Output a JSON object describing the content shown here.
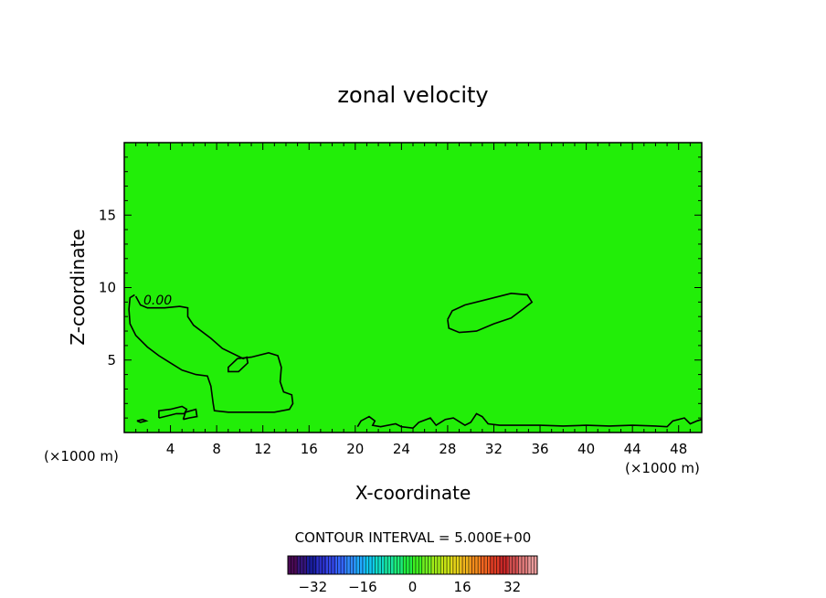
{
  "chart_data": {
    "type": "contour",
    "title": "zonal velocity",
    "xlabel": "X-coordinate",
    "ylabel": "Z-coordinate",
    "x_unit_label": "(×1000 m)",
    "x_unit_label_right": "(×1000 m)",
    "xlim": [
      0,
      50
    ],
    "ylim": [
      0,
      20
    ],
    "x_ticks": [
      "4",
      "8",
      "12",
      "16",
      "20",
      "24",
      "28",
      "32",
      "36",
      "40",
      "44",
      "48"
    ],
    "y_ticks": [
      "5",
      "10",
      "15"
    ],
    "contour_interval_text": "CONTOUR INTERVAL = 5.000E+00",
    "contour_label": "0.00",
    "field_color": "#22ee08",
    "zero_contours": [
      {
        "name": "left-blob",
        "points": [
          [
            0.9,
            9.5
          ],
          [
            0.5,
            9.3
          ],
          [
            0.4,
            8.5
          ],
          [
            0.5,
            7.5
          ],
          [
            1.0,
            6.7
          ],
          [
            2.0,
            5.9
          ],
          [
            3.0,
            5.3
          ],
          [
            4.0,
            4.8
          ],
          [
            5.0,
            4.3
          ],
          [
            6.2,
            4.0
          ],
          [
            7.2,
            3.9
          ],
          [
            7.5,
            3.2
          ],
          [
            7.7,
            2.0
          ],
          [
            7.8,
            1.5
          ],
          [
            9.0,
            1.4
          ],
          [
            11.0,
            1.4
          ],
          [
            13.0,
            1.4
          ],
          [
            14.3,
            1.6
          ],
          [
            14.6,
            2.0
          ],
          [
            14.5,
            2.6
          ],
          [
            13.8,
            2.8
          ],
          [
            13.5,
            3.5
          ],
          [
            13.6,
            4.5
          ],
          [
            13.3,
            5.3
          ],
          [
            12.5,
            5.5
          ],
          [
            11.0,
            5.2
          ],
          [
            9.8,
            5.1
          ],
          [
            9.0,
            4.5
          ],
          [
            9.0,
            4.2
          ],
          [
            9.9,
            4.2
          ],
          [
            10.7,
            4.8
          ],
          [
            10.6,
            5.2
          ],
          [
            10.3,
            5.1
          ],
          [
            8.5,
            5.8
          ],
          [
            7.5,
            6.5
          ],
          [
            6.0,
            7.4
          ],
          [
            5.5,
            8.0
          ],
          [
            5.5,
            8.6
          ],
          [
            4.8,
            8.7
          ],
          [
            3.5,
            8.6
          ],
          [
            2.0,
            8.6
          ],
          [
            1.4,
            8.8
          ],
          [
            1.0,
            9.4
          ]
        ]
      },
      {
        "name": "mid-blob",
        "points": [
          [
            28.0,
            7.8
          ],
          [
            28.4,
            8.4
          ],
          [
            29.5,
            8.8
          ],
          [
            31.5,
            9.2
          ],
          [
            33.5,
            9.6
          ],
          [
            34.9,
            9.5
          ],
          [
            35.3,
            9.0
          ],
          [
            34.5,
            8.5
          ],
          [
            33.5,
            7.9
          ],
          [
            32.0,
            7.5
          ],
          [
            30.5,
            7.0
          ],
          [
            29.0,
            6.9
          ],
          [
            28.1,
            7.2
          ],
          [
            28.0,
            7.8
          ]
        ]
      },
      {
        "name": "small-left-1",
        "points": [
          [
            3.0,
            1.0
          ],
          [
            3.0,
            1.5
          ],
          [
            4.0,
            1.6
          ],
          [
            5.0,
            1.8
          ],
          [
            5.4,
            1.6
          ],
          [
            5.2,
            1.3
          ],
          [
            4.5,
            1.3
          ],
          [
            4.0,
            1.2
          ],
          [
            3.0,
            1.0
          ]
        ]
      },
      {
        "name": "small-left-2",
        "points": [
          [
            5.1,
            0.9
          ],
          [
            5.3,
            1.4
          ],
          [
            6.2,
            1.6
          ],
          [
            6.3,
            1.1
          ],
          [
            5.6,
            1.0
          ],
          [
            5.1,
            0.9
          ]
        ]
      },
      {
        "name": "tiny-left",
        "points": [
          [
            1.1,
            0.8
          ],
          [
            1.6,
            0.9
          ],
          [
            1.9,
            0.8
          ],
          [
            1.4,
            0.7
          ],
          [
            1.1,
            0.8
          ]
        ]
      },
      {
        "name": "bottom-line",
        "points": [
          [
            20.2,
            0.4
          ],
          [
            20.5,
            0.8
          ],
          [
            21.2,
            1.1
          ],
          [
            21.7,
            0.8
          ],
          [
            21.5,
            0.5
          ],
          [
            22.2,
            0.4
          ],
          [
            23.5,
            0.6
          ],
          [
            24.0,
            0.4
          ],
          [
            25.0,
            0.3
          ],
          [
            25.5,
            0.7
          ],
          [
            26.5,
            1.0
          ],
          [
            27.0,
            0.5
          ],
          [
            27.8,
            0.9
          ],
          [
            28.5,
            1.0
          ],
          [
            29.5,
            0.5
          ],
          [
            30.0,
            0.7
          ],
          [
            30.5,
            1.3
          ],
          [
            31.0,
            1.1
          ],
          [
            31.5,
            0.6
          ],
          [
            32.5,
            0.5
          ],
          [
            34.0,
            0.5
          ],
          [
            36.0,
            0.5
          ],
          [
            38.0,
            0.45
          ],
          [
            40.0,
            0.5
          ],
          [
            42.0,
            0.45
          ],
          [
            44.0,
            0.5
          ],
          [
            46.0,
            0.45
          ],
          [
            47.0,
            0.4
          ],
          [
            47.5,
            0.8
          ],
          [
            48.5,
            1.0
          ],
          [
            49.0,
            0.6
          ],
          [
            49.6,
            0.8
          ],
          [
            50.0,
            0.9
          ]
        ]
      }
    ],
    "colorbar": {
      "ticks": [
        "−32",
        "−16",
        "0",
        "16",
        "32"
      ],
      "range": [
        -40,
        40
      ],
      "colors": [
        "#4a0a55",
        "#35157a",
        "#1a1e9e",
        "#2a30c8",
        "#3346e6",
        "#3366ff",
        "#2f8bff",
        "#20aaff",
        "#10c8f0",
        "#10dcc8",
        "#18e6a0",
        "#1cec78",
        "#22ee40",
        "#3ff020",
        "#70f020",
        "#a2ec18",
        "#c8e414",
        "#e6d418",
        "#f0b41c",
        "#f48c1c",
        "#f06420",
        "#e03c24",
        "#c82828",
        "#d25050",
        "#e07a7a",
        "#ea9a9a"
      ]
    }
  }
}
